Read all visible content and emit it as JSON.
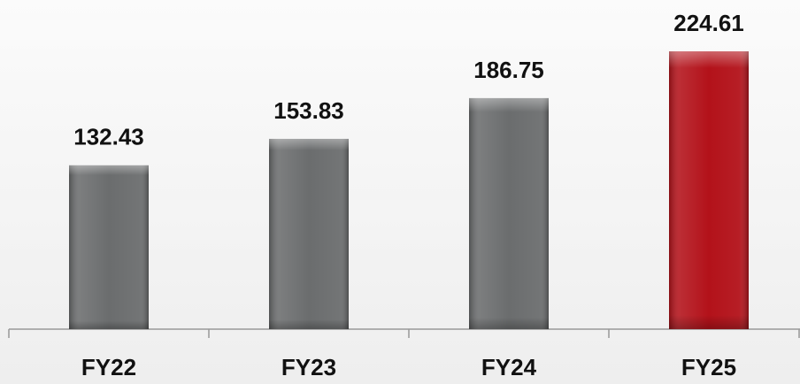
{
  "chart_data": {
    "type": "bar",
    "categories": [
      "FY22",
      "FY23",
      "FY24",
      "FY25"
    ],
    "values": [
      132.43,
      153.83,
      186.75,
      224.61
    ],
    "colors": [
      "#6b6d6e",
      "#6b6d6e",
      "#6b6d6e",
      "#b3121a"
    ]
  }
}
